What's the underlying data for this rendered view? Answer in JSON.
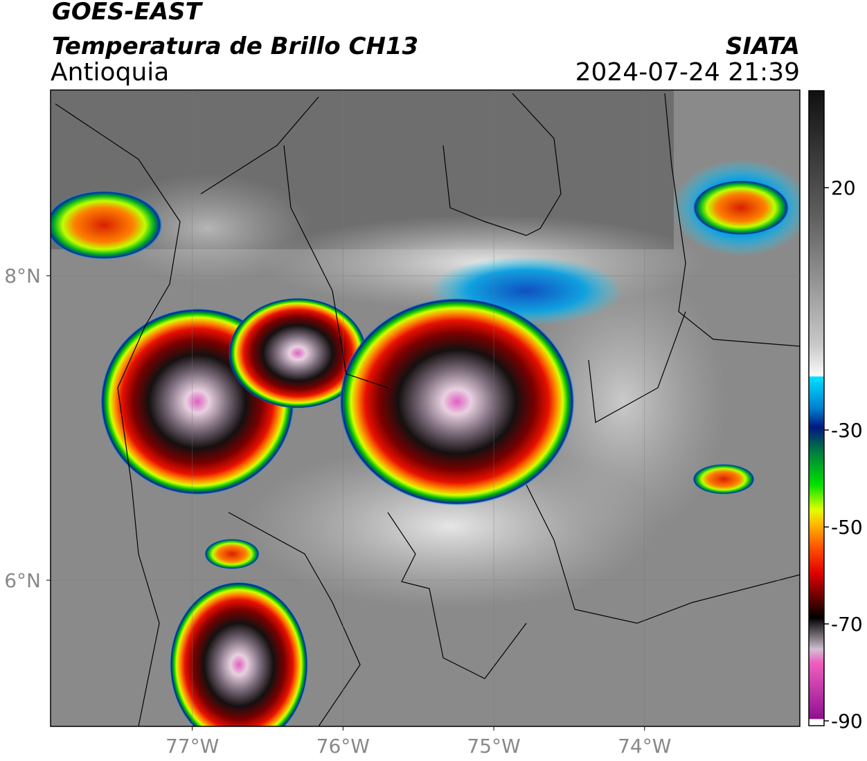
{
  "header": {
    "title": "GOES-EAST",
    "subtitle": "Temperatura de Brillo CH13",
    "region": "Antioquia",
    "source": "SIATA",
    "datetime": "2024-07-24 21:39"
  },
  "map": {
    "xlim": [
      -77.94,
      -72.97
    ],
    "ylim": [
      5.04,
      9.22
    ],
    "xticks": [
      {
        "value": -77,
        "label": "77°W"
      },
      {
        "value": -76,
        "label": "76°W"
      },
      {
        "value": -75,
        "label": "75°W"
      },
      {
        "value": -74,
        "label": "74°W"
      }
    ],
    "yticks": [
      {
        "value": 8,
        "label": "8°N"
      },
      {
        "value": 6,
        "label": "6°N"
      }
    ]
  },
  "colorbar": {
    "lim": [
      -91,
      40
    ],
    "ticks": [
      20,
      -30,
      -50,
      -70,
      -90
    ]
  }
}
